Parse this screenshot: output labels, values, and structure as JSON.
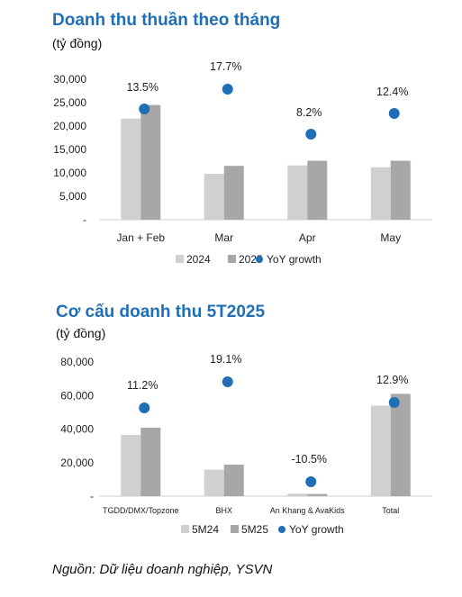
{
  "chart_data": [
    {
      "type": "bar",
      "title": "Doanh thu thuần theo tháng",
      "ylabel": "(tỷ đồng)",
      "categories": [
        "Jan + Feb",
        "Mar",
        "Apr",
        "May"
      ],
      "ylim": [
        0,
        30000
      ],
      "yticks": [
        "30,000",
        "25,000",
        "20,000",
        "15,000",
        "10,000",
        "5,000",
        "-"
      ],
      "series": [
        {
          "name": "2024",
          "values": [
            21600,
            9800,
            11600,
            11200
          ],
          "color": "#d0d0d0"
        },
        {
          "name": "2025",
          "values": [
            24500,
            11500,
            12600,
            12600
          ],
          "color": "#a8a6a6"
        }
      ],
      "yoy": {
        "name": "YoY growth",
        "labels": [
          "13.5%",
          "17.7%",
          "8.2%",
          "12.4%"
        ],
        "color": "#1f6fb6"
      }
    },
    {
      "type": "bar",
      "title": "Cơ cấu doanh thu 5T2025",
      "ylabel": "(tỷ đồng)",
      "categories": [
        "TGDD/DMX/Topzone",
        "BHX",
        "An Khang & AvaKids",
        "Total"
      ],
      "ylim": [
        0,
        80000
      ],
      "yticks": [
        "80,000",
        "60,000",
        "40,000",
        "20,000",
        "-"
      ],
      "series": [
        {
          "name": "5M24",
          "values": [
            36500,
            15800,
            1500,
            54000
          ],
          "color": "#d0d0d0"
        },
        {
          "name": "5M25",
          "values": [
            40800,
            18800,
            1300,
            61000
          ],
          "color": "#a8a6a6"
        }
      ],
      "yoy": {
        "name": "YoY growth",
        "labels": [
          "11.2%",
          "19.1%",
          "-10.5%",
          "12.9%"
        ],
        "color": "#1f6fb6"
      }
    }
  ],
  "source": "Nguồn: Dữ liệu doanh nghiệp, YSVN"
}
